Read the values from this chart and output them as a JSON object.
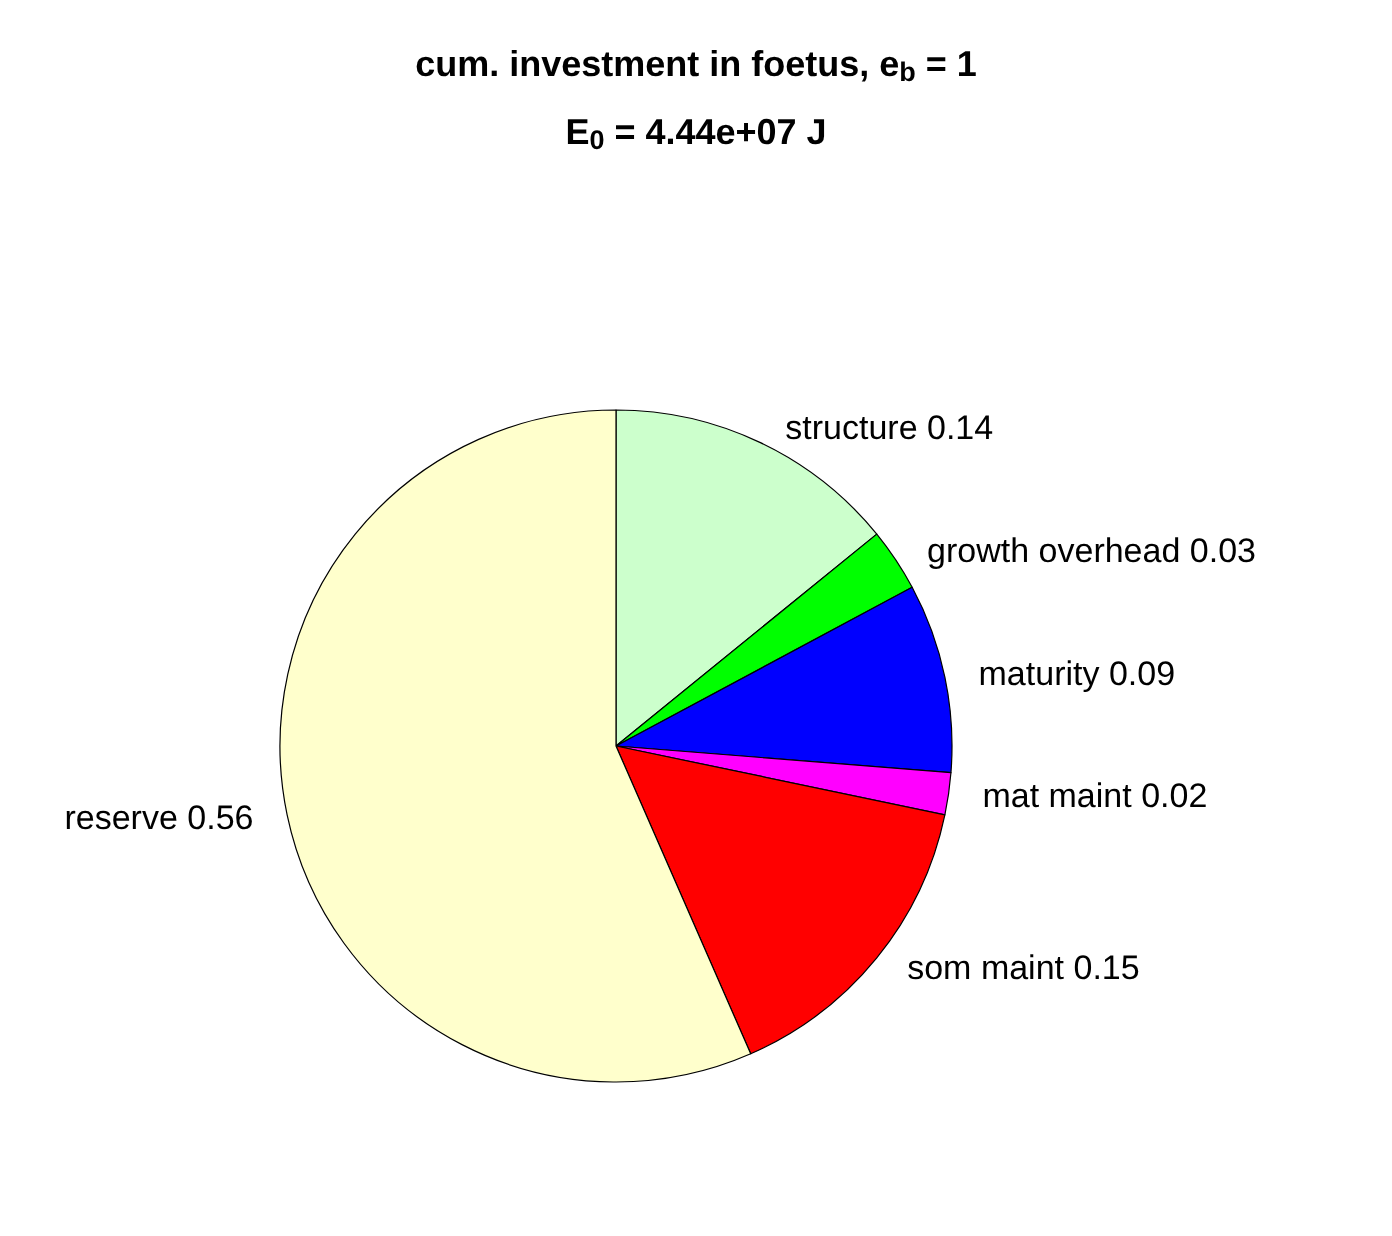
{
  "chart_data": {
    "type": "pie",
    "title": "cum. investment in foetus, e$_{b}$ = 1",
    "subtitle": "E$_{0}$ = 4.44e+07 J",
    "categories": [
      "structure 0.14",
      "growth overhead 0.03",
      "maturity 0.09",
      "mat maint 0.02",
      "som maint 0.15",
      "reserve 0.56"
    ],
    "values": [
      0.14,
      0.03,
      0.09,
      0.02,
      0.15,
      0.56
    ],
    "colors": [
      "#ccffcc",
      "#00ff00",
      "#0000ff",
      "#ff00ff",
      "#ff0000",
      "#ffffcc"
    ],
    "legend": false
  }
}
